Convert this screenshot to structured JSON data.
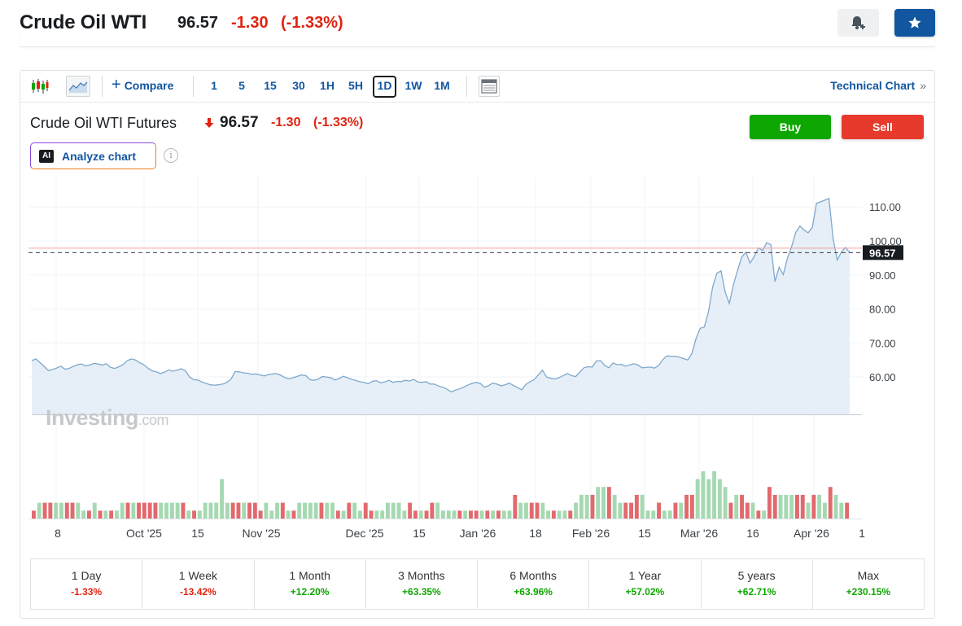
{
  "header": {
    "title": "Crude Oil WTI",
    "price": "96.57",
    "change": "-1.30",
    "change_pct": "(-1.33%)"
  },
  "toolbar": {
    "compare_label": "Compare",
    "intervals": [
      "1",
      "5",
      "15",
      "30",
      "1H",
      "5H",
      "1D",
      "1W",
      "1M"
    ],
    "active_interval": "1D",
    "technical_chart_label": "Technical Chart"
  },
  "instrument": {
    "name": "Crude Oil WTI Futures",
    "price": "96.57",
    "change": "-1.30",
    "change_pct": "(-1.33%)"
  },
  "actions": {
    "buy_label": "Buy",
    "sell_label": "Sell",
    "analyze_label": "Analyze chart",
    "ai_badge": "AI"
  },
  "watermark": {
    "brand": "Investing",
    "suffix": ".com"
  },
  "colors": {
    "accent": "#1256a0",
    "negative": "#e0230f",
    "positive": "#0ea600",
    "buy": "#0ea600",
    "sell": "#e83a2c",
    "line": "#7fa8cc",
    "area": "#e3edf6",
    "volume_up": "#a5d9b1",
    "volume_down": "#e2696d"
  },
  "chart_data": {
    "type": "area",
    "title": "Crude Oil WTI Futures",
    "xlabel": "",
    "ylabel": "",
    "ylim": [
      49,
      117
    ],
    "y_ticks": [
      "60.00",
      "70.00",
      "80.00",
      "90.00",
      "100.00",
      "110.00"
    ],
    "x_tick_labels": [
      "8",
      "Oct '25",
      "15",
      "Nov '25",
      "Dec '25",
      "15",
      "Jan '26",
      "18",
      "Feb '26",
      "15",
      "Mar '26",
      "16",
      "Apr '26",
      "1"
    ],
    "last_price_label": "96.57",
    "last_price": 96.57,
    "previous_close": 97.87,
    "grid": true,
    "series": [
      {
        "values": [
          64.8,
          65.3,
          64.2,
          63.1,
          61.9,
          62.2,
          62.6,
          63.2,
          62.3,
          62.5,
          63.1,
          63.6,
          63.8,
          63.3,
          63.5,
          64.0,
          63.8,
          63.5,
          63.9,
          62.8,
          62.5,
          63.0,
          63.6,
          64.8,
          65.3,
          65.0,
          64.2,
          63.6,
          62.6,
          61.8,
          61.5,
          61.0,
          61.4,
          62.1,
          61.7,
          62.0,
          62.4,
          61.8,
          60.0,
          59.2,
          59.1,
          58.5,
          58.1,
          57.7,
          57.6,
          57.7,
          57.9,
          58.4,
          59.4,
          61.6,
          61.5,
          61.2,
          61.1,
          60.8,
          60.9,
          60.6,
          60.3,
          60.7,
          60.9,
          61.0,
          60.5,
          59.8,
          59.5,
          59.8,
          60.2,
          60.6,
          60.4,
          59.2,
          59.0,
          59.4,
          60.1,
          60.0,
          59.8,
          59.1,
          59.5,
          60.2,
          59.8,
          59.3,
          59.0,
          58.6,
          58.4,
          58.0,
          58.7,
          58.9,
          58.3,
          58.5,
          59.0,
          58.4,
          58.7,
          58.6,
          59.0,
          58.8,
          59.3,
          58.5,
          58.4,
          58.6,
          57.9,
          57.9,
          57.3,
          57.0,
          56.4,
          55.6,
          56.1,
          56.5,
          57.0,
          57.6,
          58.1,
          58.4,
          58.1,
          57.0,
          57.4,
          58.2,
          57.9,
          57.4,
          57.7,
          58.2,
          57.5,
          56.9,
          56.2,
          57.8,
          58.6,
          59.2,
          60.6,
          62.0,
          60.0,
          59.6,
          59.4,
          59.8,
          60.4,
          61.0,
          60.4,
          60.1,
          61.4,
          62.7,
          63.0,
          62.9,
          64.7,
          64.8,
          63.4,
          62.7,
          64.1,
          63.6,
          63.7,
          63.2,
          63.5,
          63.9,
          63.5,
          62.7,
          62.8,
          62.9,
          62.6,
          63.4,
          65.1,
          66.2,
          66.1,
          66.1,
          65.8,
          65.4,
          65.0,
          66.9,
          71.3,
          74.3,
          74.7,
          79.2,
          86.4,
          90.5,
          91.2,
          85.0,
          81.6,
          87.2,
          91.4,
          95.3,
          96.7,
          93.5,
          95.4,
          98.0,
          97.2,
          99.5,
          98.9,
          88.0,
          92.3,
          90.1,
          94.9,
          98.3,
          102.5,
          104.4,
          103.2,
          102.4,
          104.0,
          111.1,
          111.5,
          112.0,
          112.5,
          100.8,
          94.4,
          96.7,
          98.1,
          96.57
        ]
      }
    ],
    "volume": [
      [
        1,
        "down"
      ],
      [
        2,
        "up"
      ],
      [
        2,
        "down"
      ],
      [
        2,
        "down"
      ],
      [
        2,
        "up"
      ],
      [
        2,
        "up"
      ],
      [
        2,
        "down"
      ],
      [
        2,
        "down"
      ],
      [
        2,
        "up"
      ],
      [
        1,
        "up"
      ],
      [
        1,
        "down"
      ],
      [
        2,
        "up"
      ],
      [
        1,
        "down"
      ],
      [
        1,
        "up"
      ],
      [
        1,
        "down"
      ],
      [
        1,
        "up"
      ],
      [
        2,
        "up"
      ],
      [
        2,
        "down"
      ],
      [
        2,
        "up"
      ],
      [
        2,
        "down"
      ],
      [
        2,
        "down"
      ],
      [
        2,
        "down"
      ],
      [
        2,
        "down"
      ],
      [
        2,
        "up"
      ],
      [
        2,
        "up"
      ],
      [
        2,
        "up"
      ],
      [
        2,
        "up"
      ],
      [
        2,
        "down"
      ],
      [
        1,
        "up"
      ],
      [
        1,
        "down"
      ],
      [
        1,
        "up"
      ],
      [
        2,
        "up"
      ],
      [
        2,
        "up"
      ],
      [
        2,
        "up"
      ],
      [
        5,
        "up"
      ],
      [
        2,
        "up"
      ],
      [
        2,
        "down"
      ],
      [
        2,
        "down"
      ],
      [
        2,
        "up"
      ],
      [
        2,
        "down"
      ],
      [
        2,
        "down"
      ],
      [
        1,
        "down"
      ],
      [
        2,
        "up"
      ],
      [
        1,
        "up"
      ],
      [
        2,
        "up"
      ],
      [
        2,
        "down"
      ],
      [
        1,
        "up"
      ],
      [
        1,
        "down"
      ],
      [
        2,
        "up"
      ],
      [
        2,
        "up"
      ],
      [
        2,
        "up"
      ],
      [
        2,
        "up"
      ],
      [
        2,
        "down"
      ],
      [
        2,
        "up"
      ],
      [
        2,
        "up"
      ],
      [
        1,
        "down"
      ],
      [
        1,
        "up"
      ],
      [
        2,
        "down"
      ],
      [
        2,
        "up"
      ],
      [
        1,
        "up"
      ],
      [
        2,
        "down"
      ],
      [
        1,
        "down"
      ],
      [
        1,
        "up"
      ],
      [
        1,
        "up"
      ],
      [
        2,
        "up"
      ],
      [
        2,
        "up"
      ],
      [
        2,
        "up"
      ],
      [
        1,
        "up"
      ],
      [
        2,
        "down"
      ],
      [
        1,
        "down"
      ],
      [
        1,
        "up"
      ],
      [
        1,
        "down"
      ],
      [
        2,
        "down"
      ],
      [
        2,
        "up"
      ],
      [
        1,
        "up"
      ],
      [
        1,
        "up"
      ],
      [
        1,
        "up"
      ],
      [
        1,
        "down"
      ],
      [
        1,
        "up"
      ],
      [
        1,
        "down"
      ],
      [
        1,
        "down"
      ],
      [
        1,
        "up"
      ],
      [
        1,
        "down"
      ],
      [
        1,
        "up"
      ],
      [
        1,
        "down"
      ],
      [
        1,
        "up"
      ],
      [
        1,
        "up"
      ],
      [
        3,
        "down"
      ],
      [
        2,
        "up"
      ],
      [
        2,
        "up"
      ],
      [
        2,
        "down"
      ],
      [
        2,
        "down"
      ],
      [
        2,
        "up"
      ],
      [
        1,
        "up"
      ],
      [
        1,
        "down"
      ],
      [
        1,
        "up"
      ],
      [
        1,
        "up"
      ],
      [
        1,
        "down"
      ],
      [
        2,
        "up"
      ],
      [
        3,
        "up"
      ],
      [
        3,
        "up"
      ],
      [
        3,
        "down"
      ],
      [
        4,
        "up"
      ],
      [
        4,
        "up"
      ],
      [
        4,
        "down"
      ],
      [
        3,
        "up"
      ],
      [
        2,
        "up"
      ],
      [
        2,
        "down"
      ],
      [
        2,
        "down"
      ],
      [
        3,
        "down"
      ],
      [
        3,
        "up"
      ],
      [
        1,
        "up"
      ],
      [
        1,
        "up"
      ],
      [
        2,
        "down"
      ],
      [
        1,
        "up"
      ],
      [
        1,
        "up"
      ],
      [
        2,
        "down"
      ],
      [
        2,
        "up"
      ],
      [
        3,
        "down"
      ],
      [
        3,
        "down"
      ],
      [
        5,
        "up"
      ],
      [
        6,
        "up"
      ],
      [
        5,
        "up"
      ],
      [
        6,
        "up"
      ],
      [
        5,
        "up"
      ],
      [
        4,
        "up"
      ],
      [
        2,
        "down"
      ],
      [
        3,
        "up"
      ],
      [
        3,
        "down"
      ],
      [
        2,
        "down"
      ],
      [
        2,
        "up"
      ],
      [
        1,
        "down"
      ],
      [
        1,
        "up"
      ],
      [
        4,
        "down"
      ],
      [
        3,
        "down"
      ],
      [
        3,
        "up"
      ],
      [
        3,
        "up"
      ],
      [
        3,
        "up"
      ],
      [
        3,
        "down"
      ],
      [
        3,
        "down"
      ],
      [
        2,
        "up"
      ],
      [
        3,
        "down"
      ],
      [
        3,
        "up"
      ],
      [
        2,
        "up"
      ],
      [
        4,
        "down"
      ],
      [
        3,
        "up"
      ],
      [
        2,
        "up"
      ],
      [
        2,
        "down"
      ]
    ]
  },
  "performance": [
    {
      "label": "1 Day",
      "value": "-1.33%",
      "dir": "neg"
    },
    {
      "label": "1 Week",
      "value": "-13.42%",
      "dir": "neg"
    },
    {
      "label": "1 Month",
      "value": "+12.20%",
      "dir": "pos"
    },
    {
      "label": "3 Months",
      "value": "+63.35%",
      "dir": "pos"
    },
    {
      "label": "6 Months",
      "value": "+63.96%",
      "dir": "pos"
    },
    {
      "label": "1 Year",
      "value": "+57.02%",
      "dir": "pos"
    },
    {
      "label": "5 years",
      "value": "+62.71%",
      "dir": "pos"
    },
    {
      "label": "Max",
      "value": "+230.15%",
      "dir": "pos"
    }
  ]
}
